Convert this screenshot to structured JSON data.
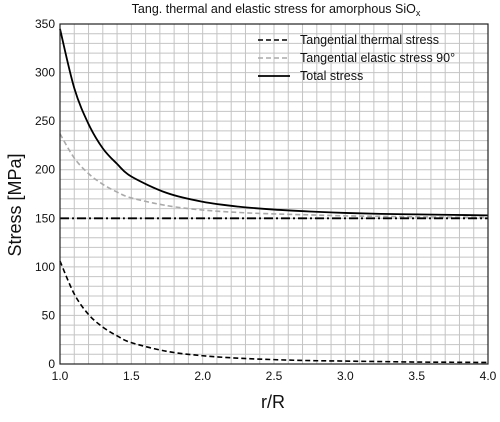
{
  "chart_data": {
    "type": "line",
    "title": "Tang. thermal and elastic stress for amorphous SiO",
    "title_subscript": "x",
    "xlabel": "r/R",
    "ylabel": "Stress [MPa]",
    "xlim": [
      1.0,
      4.0
    ],
    "ylim": [
      0,
      350
    ],
    "x_ticks": [
      "1.0",
      "1.5",
      "2.0",
      "2.5",
      "3.0",
      "3.5",
      "4.0"
    ],
    "y_ticks": [
      "0",
      "50",
      "100",
      "150",
      "200",
      "250",
      "300",
      "350"
    ],
    "grid": true,
    "legend_position": "top-right",
    "x": [
      1.0,
      1.1,
      1.2,
      1.3,
      1.4,
      1.5,
      1.75,
      2.0,
      2.25,
      2.5,
      2.75,
      3.0,
      3.25,
      3.5,
      3.75,
      4.0
    ],
    "series": [
      {
        "name": "Tangential thermal stress",
        "style": "dashed",
        "color": "#000000",
        "values": [
          106,
          72,
          51,
          38,
          29,
          22,
          13,
          8.5,
          6,
          4.5,
          3.5,
          3,
          2.5,
          2,
          1.8,
          1.6
        ]
      },
      {
        "name": "Tangential elastic stress 90°",
        "style": "dashed",
        "color": "#aaaaaa",
        "values": [
          237,
          212,
          196,
          185,
          177,
          171,
          163,
          158.5,
          156,
          154.5,
          153.5,
          152.5,
          152,
          151.5,
          151.2,
          151
        ]
      },
      {
        "name": "Total stress",
        "style": "solid",
        "color": "#000000",
        "values": [
          345,
          284,
          247,
          222,
          206,
          193,
          176,
          167,
          162,
          159,
          157,
          155.5,
          154.5,
          154,
          153.5,
          153
        ]
      },
      {
        "style": "dash-dot",
        "color": "#000000",
        "values": [
          150,
          150,
          150,
          150,
          150,
          150,
          150,
          150,
          150,
          150,
          150,
          150,
          150,
          150,
          150,
          150
        ]
      }
    ]
  }
}
